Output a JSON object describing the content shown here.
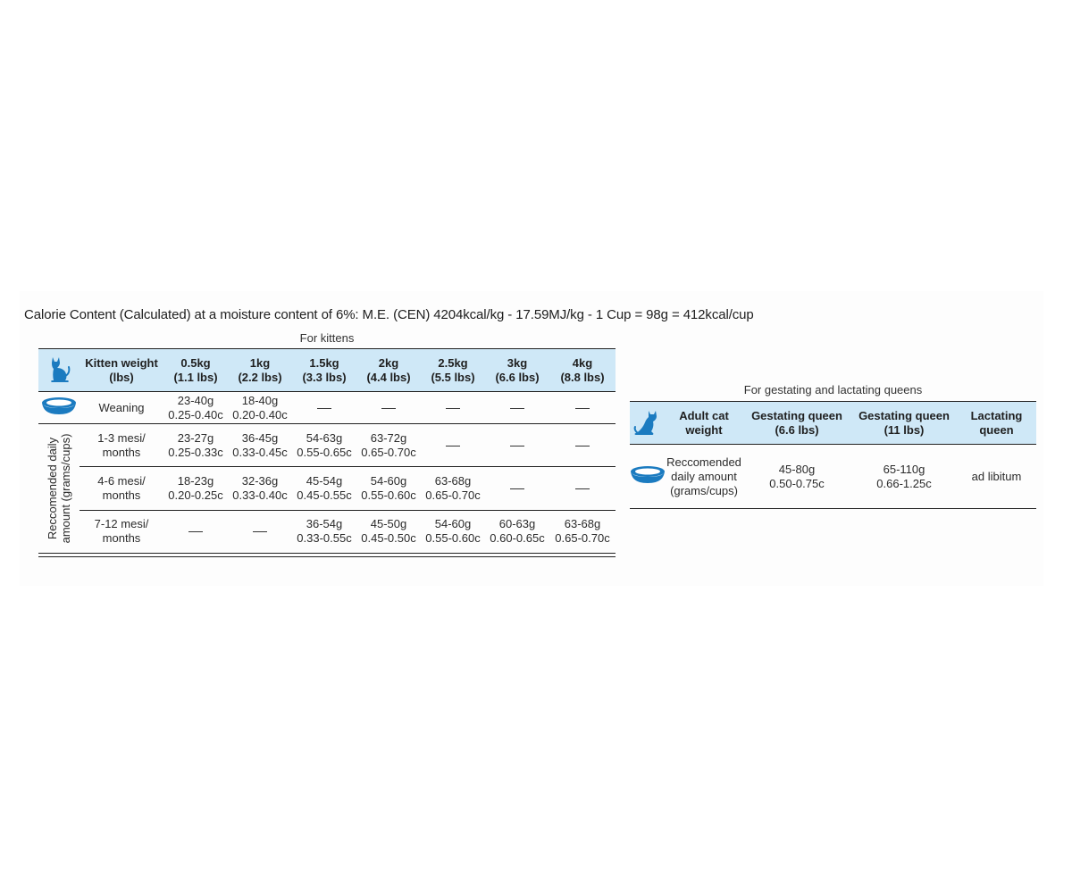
{
  "calorie_content": "Calorie Content (Calculated) at a moisture content of 6%: M.E. (CEN) 4204kcal/kg - 17.59MJ/kg - 1 Cup = 98g = 412kcal/cup",
  "kittens": {
    "caption": "For kittens",
    "weight_header": [
      "Kitten weight",
      "(lbs)"
    ],
    "weights": [
      [
        "0.5kg",
        "(1.1 lbs)"
      ],
      [
        "1kg",
        "(2.2 lbs)"
      ],
      [
        "1.5kg",
        "(3.3 lbs)"
      ],
      [
        "2kg",
        "(4.4 lbs)"
      ],
      [
        "2.5kg",
        "(5.5 lbs)"
      ],
      [
        "3kg",
        "(6.6 lbs)"
      ],
      [
        "4kg",
        "(8.8 lbs)"
      ]
    ],
    "side_label": [
      "Reccomended daily",
      "amount (grams/cups)"
    ],
    "rows": [
      {
        "label": [
          "Weaning"
        ],
        "cells": [
          [
            "23-40g",
            "0.25-0.40c"
          ],
          [
            "18-40g",
            "0.20-0.40c"
          ],
          null,
          null,
          null,
          null,
          null
        ]
      },
      {
        "label": [
          "1-3 mesi/",
          "months"
        ],
        "cells": [
          [
            "23-27g",
            "0.25-0.33c"
          ],
          [
            "36-45g",
            "0.33-0.45c"
          ],
          [
            "54-63g",
            "0.55-0.65c"
          ],
          [
            "63-72g",
            "0.65-0.70c"
          ],
          null,
          null,
          null
        ]
      },
      {
        "label": [
          "4-6 mesi/",
          "months"
        ],
        "cells": [
          [
            "18-23g",
            "0.20-0.25c"
          ],
          [
            "32-36g",
            "0.33-0.40c"
          ],
          [
            "45-54g",
            "0.45-0.55c"
          ],
          [
            "54-60g",
            "0.55-0.60c"
          ],
          [
            "63-68g",
            "0.65-0.70c"
          ],
          null,
          null
        ]
      },
      {
        "label": [
          "7-12 mesi/",
          "months"
        ],
        "cells": [
          null,
          null,
          [
            "36-54g",
            "0.33-0.55c"
          ],
          [
            "45-50g",
            "0.45-0.50c"
          ],
          [
            "54-60g",
            "0.55-0.60c"
          ],
          [
            "60-63g",
            "0.60-0.65c"
          ],
          [
            "63-68g",
            "0.65-0.70c"
          ]
        ]
      }
    ]
  },
  "queens": {
    "caption": "For gestating and lactating queens",
    "headers": [
      [
        "Adult cat",
        "weight"
      ],
      [
        "Gestating queen",
        "(6.6 lbs)"
      ],
      [
        "Gestating queen",
        "(11 lbs)"
      ],
      [
        "Lactating",
        "queen"
      ]
    ],
    "row": {
      "label": [
        "Reccomended",
        "daily amount",
        "(grams/cups)"
      ],
      "cells": [
        [
          "45-80g",
          "0.50-0.75c"
        ],
        [
          "65-110g",
          "0.66-1.25c"
        ],
        [
          "ad libitum"
        ]
      ]
    }
  },
  "icons": {
    "cat": "cat-icon",
    "bowl": "food-bowl-icon",
    "accent_color": "#1b7bc0",
    "header_bg": "#cfe8f7"
  }
}
